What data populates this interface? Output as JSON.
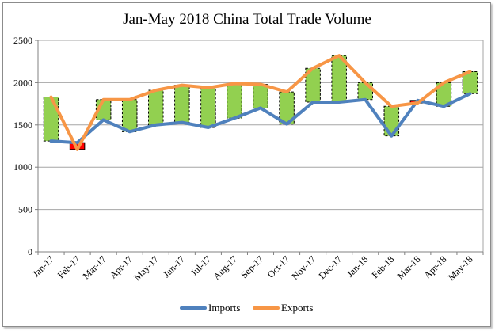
{
  "chart_data": {
    "type": "line",
    "title": "Jan-May 2018 China Total Trade Volume",
    "xlabel": "",
    "ylabel": "",
    "ylim": [
      0,
      2500
    ],
    "yticks": [
      0,
      500,
      1000,
      1500,
      2000,
      2500
    ],
    "grid": true,
    "legend_position": "bottom",
    "categories": [
      "Jan-17",
      "Feb-17",
      "Mar-17",
      "Apr-17",
      "May-17",
      "Jun-17",
      "Jul-17",
      "Aug-17",
      "Sep-17",
      "Oct-17",
      "Nov-17",
      "Dec-17",
      "Jan-18",
      "Feb-18",
      "Mar-18",
      "Apr-18",
      "May-18"
    ],
    "series": [
      {
        "name": "Imports",
        "color": "#4f81bd",
        "values": [
          1310,
          1290,
          1560,
          1420,
          1500,
          1530,
          1470,
          1580,
          1700,
          1510,
          1770,
          1770,
          1800,
          1370,
          1790,
          1720,
          1870
        ]
      },
      {
        "name": "Exports",
        "color": "#f79646",
        "values": [
          1830,
          1210,
          1800,
          1800,
          1910,
          1970,
          1940,
          1990,
          1980,
          1890,
          2170,
          2320,
          2000,
          1720,
          1760,
          2000,
          2130
        ]
      }
    ],
    "surplus_color": "#92d050",
    "deficit_color": "#ff0000"
  }
}
